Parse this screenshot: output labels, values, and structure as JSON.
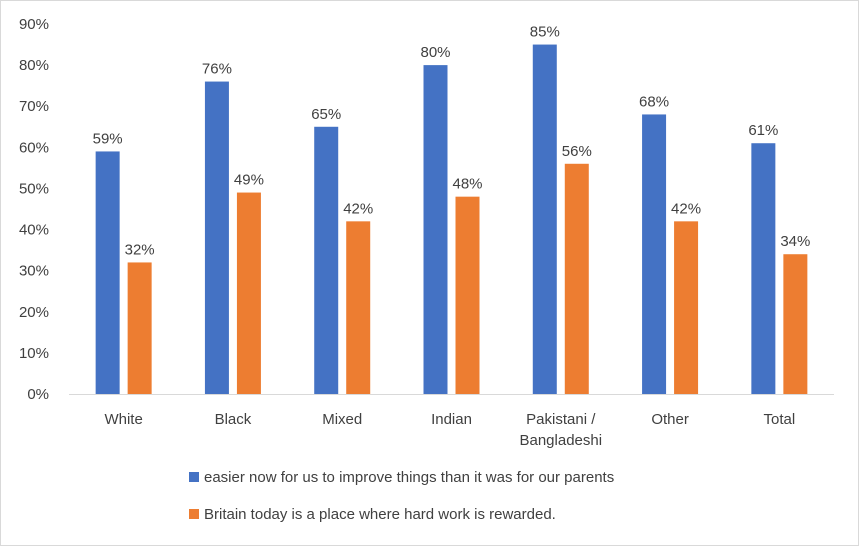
{
  "chart_data": {
    "type": "bar",
    "title": "",
    "xlabel": "",
    "ylabel": "",
    "ylim": [
      0,
      90
    ],
    "yticks": [
      0,
      10,
      20,
      30,
      40,
      50,
      60,
      70,
      80,
      90
    ],
    "ytick_labels": [
      "0%",
      "10%",
      "20%",
      "30%",
      "40%",
      "50%",
      "60%",
      "70%",
      "80%",
      "90%"
    ],
    "categories": [
      [
        "White"
      ],
      [
        "Black"
      ],
      [
        "Mixed"
      ],
      [
        "Indian"
      ],
      [
        "Pakistani /",
        "Bangladeshi"
      ],
      [
        "Other"
      ],
      [
        "Total"
      ]
    ],
    "series": [
      {
        "name": "easier now for us to improve things than it was for our parents",
        "color": "#4472c4",
        "values": [
          59,
          76,
          65,
          80,
          85,
          68,
          61
        ],
        "labels": [
          "59%",
          "76%",
          "65%",
          "80%",
          "85%",
          "68%",
          "61%"
        ]
      },
      {
        "name": "Britain today is a place where hard work is rewarded.",
        "color": "#ed7d31",
        "values": [
          32,
          49,
          42,
          48,
          56,
          42,
          34
        ],
        "labels": [
          "32%",
          "49%",
          "42%",
          "48%",
          "56%",
          "42%",
          "34%"
        ]
      }
    ],
    "grid": false,
    "legend_position": "bottom"
  }
}
